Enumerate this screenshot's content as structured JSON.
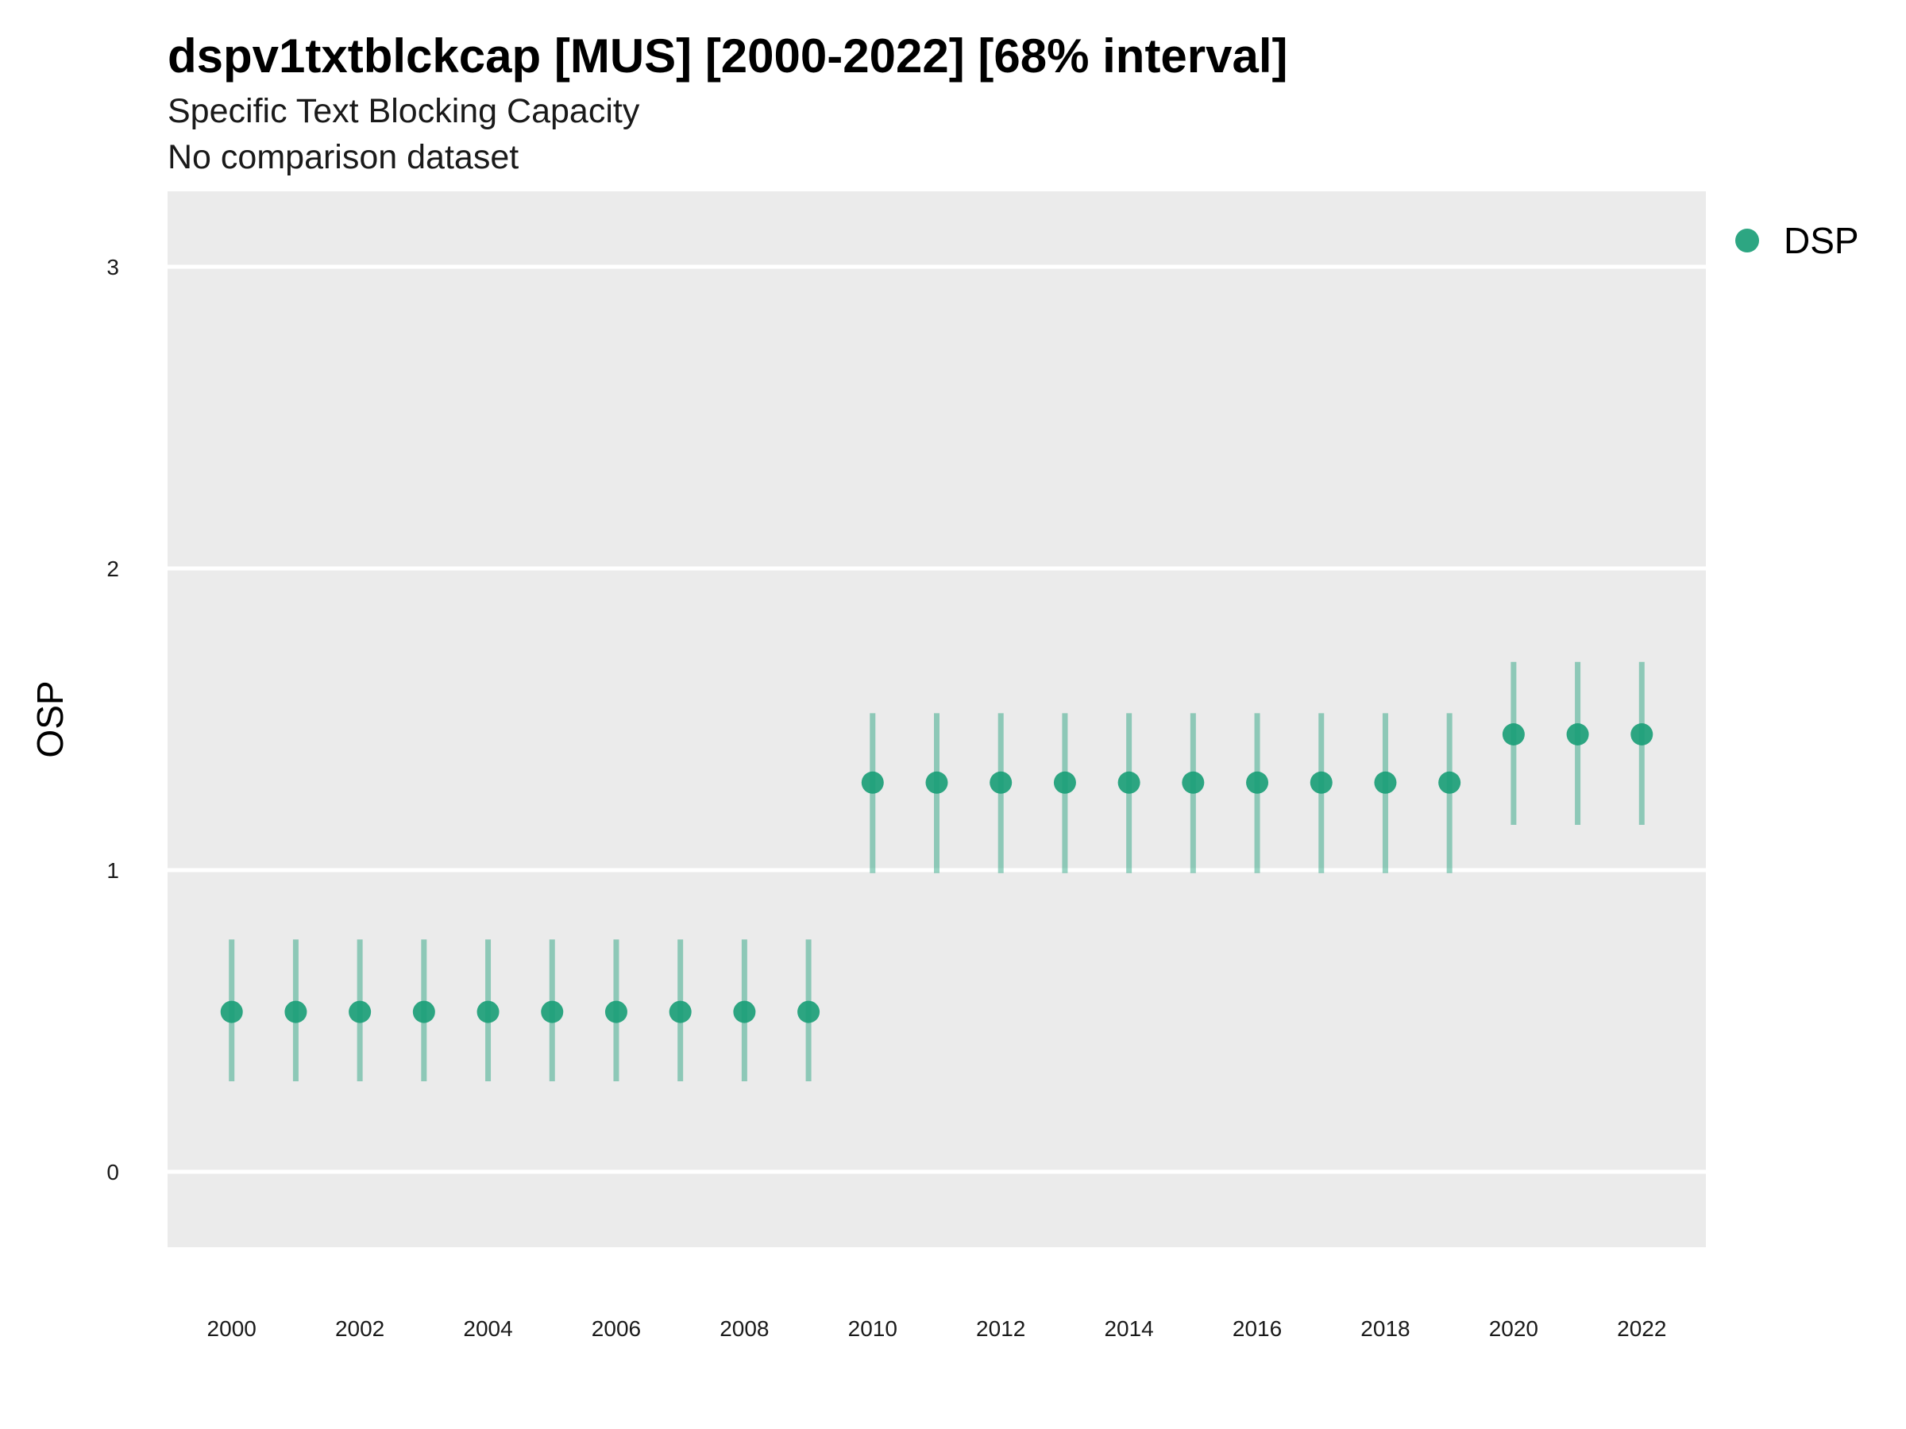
{
  "chart_data": {
    "type": "scatter",
    "title": "dspv1txtblckcap [MUS] [2000-2022] [68% interval]",
    "subtitle": "Specific Text Blocking Capacity",
    "caption": "No comparison dataset",
    "ylabel": "OSP",
    "xlabel": "",
    "xlim": [
      1999,
      2023
    ],
    "ylim": [
      -0.25,
      3.25
    ],
    "x_ticks": [
      2000,
      2002,
      2004,
      2006,
      2008,
      2010,
      2012,
      2014,
      2016,
      2018,
      2020,
      2022
    ],
    "y_ticks": [
      0,
      1,
      2,
      3
    ],
    "grid": true,
    "legend_position": "right",
    "series": [
      {
        "name": "DSP",
        "color": "#1b9e77",
        "points": [
          {
            "x": 2000,
            "y": 0.53,
            "lo": 0.3,
            "hi": 0.77
          },
          {
            "x": 2001,
            "y": 0.53,
            "lo": 0.3,
            "hi": 0.77
          },
          {
            "x": 2002,
            "y": 0.53,
            "lo": 0.3,
            "hi": 0.77
          },
          {
            "x": 2003,
            "y": 0.53,
            "lo": 0.3,
            "hi": 0.77
          },
          {
            "x": 2004,
            "y": 0.53,
            "lo": 0.3,
            "hi": 0.77
          },
          {
            "x": 2005,
            "y": 0.53,
            "lo": 0.3,
            "hi": 0.77
          },
          {
            "x": 2006,
            "y": 0.53,
            "lo": 0.3,
            "hi": 0.77
          },
          {
            "x": 2007,
            "y": 0.53,
            "lo": 0.3,
            "hi": 0.77
          },
          {
            "x": 2008,
            "y": 0.53,
            "lo": 0.3,
            "hi": 0.77
          },
          {
            "x": 2009,
            "y": 0.53,
            "lo": 0.3,
            "hi": 0.77
          },
          {
            "x": 2010,
            "y": 1.29,
            "lo": 0.99,
            "hi": 1.52
          },
          {
            "x": 2011,
            "y": 1.29,
            "lo": 0.99,
            "hi": 1.52
          },
          {
            "x": 2012,
            "y": 1.29,
            "lo": 0.99,
            "hi": 1.52
          },
          {
            "x": 2013,
            "y": 1.29,
            "lo": 0.99,
            "hi": 1.52
          },
          {
            "x": 2014,
            "y": 1.29,
            "lo": 0.99,
            "hi": 1.52
          },
          {
            "x": 2015,
            "y": 1.29,
            "lo": 0.99,
            "hi": 1.52
          },
          {
            "x": 2016,
            "y": 1.29,
            "lo": 0.99,
            "hi": 1.52
          },
          {
            "x": 2017,
            "y": 1.29,
            "lo": 0.99,
            "hi": 1.52
          },
          {
            "x": 2018,
            "y": 1.29,
            "lo": 0.99,
            "hi": 1.52
          },
          {
            "x": 2019,
            "y": 1.29,
            "lo": 0.99,
            "hi": 1.52
          },
          {
            "x": 2020,
            "y": 1.45,
            "lo": 1.15,
            "hi": 1.69
          },
          {
            "x": 2021,
            "y": 1.45,
            "lo": 1.15,
            "hi": 1.69
          },
          {
            "x": 2022,
            "y": 1.45,
            "lo": 1.15,
            "hi": 1.69
          }
        ]
      }
    ]
  }
}
